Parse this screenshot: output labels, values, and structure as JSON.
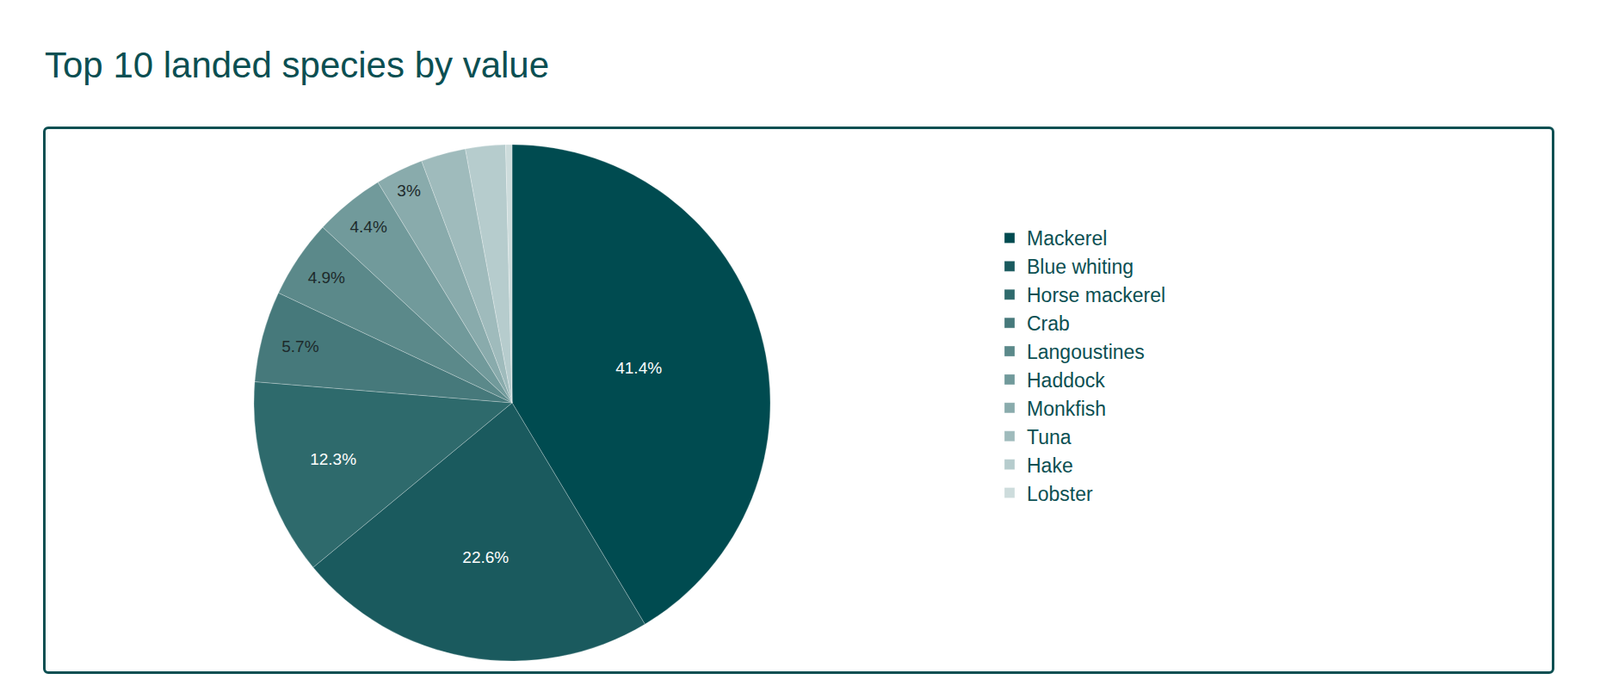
{
  "chart_data": {
    "type": "pie",
    "title": "Top 10 landed species by value",
    "categories": [
      "Mackerel",
      "Blue whiting",
      "Horse mackerel",
      "Crab",
      "Langoustines",
      "Haddock",
      "Monkfish",
      "Tuna",
      "Hake",
      "Lobster"
    ],
    "values": [
      41.4,
      22.6,
      12.3,
      5.7,
      4.9,
      4.4,
      3,
      2.8,
      2.5,
      0.4
    ],
    "value_labels": [
      "41.4%",
      "22.6%",
      "12.3%",
      "5.7%",
      "4.9%",
      "4.4%",
      "3%",
      null,
      null,
      null
    ],
    "colors": [
      "#004b50",
      "#1a5a5e",
      "#2e6a6c",
      "#46797b",
      "#5b898a",
      "#719a9b",
      "#89abac",
      "#9fbbbc",
      "#b6cccd",
      "#cddcdc"
    ],
    "data_labels": true,
    "legend": "right"
  }
}
